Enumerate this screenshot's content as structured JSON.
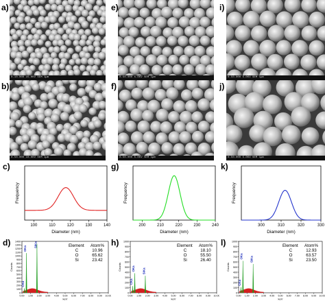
{
  "figure": {
    "panel_labels": [
      "a)",
      "b)",
      "c)",
      "d)",
      "e)",
      "f)",
      "g)",
      "h)",
      "i)",
      "j)",
      "k)",
      "l)"
    ],
    "sem_info": [
      "0.10.000   15.0KV  SEM   1µm",
      "0.50.000   10.0KV  SEM   1µm",
      "0.50.000   5.0KV  SEM   1µm",
      "0.50.000   5.0KV  SEM   1µm",
      "0.50.000   5.0KV  SEM   1µm",
      "0.50.000   5.0KV  SEM   1µm"
    ]
  },
  "chart_data": [
    {
      "type": "line",
      "panel": "c",
      "title": "",
      "xlabel": "Diameter (nm)",
      "ylabel": "Frequency",
      "xlim": [
        95,
        140
      ],
      "xticks": [
        100,
        110,
        120,
        130,
        140
      ],
      "series": [
        {
          "color": "#e02020",
          "peak_x": 117.5,
          "sigma": 4.2,
          "baseline": 0.18,
          "amplitude": 0.42
        }
      ],
      "grid": false
    },
    {
      "type": "line",
      "panel": "g",
      "title": "",
      "xlabel": "Diameter (nm)",
      "ylabel": "Frequency",
      "xlim": [
        195,
        240
      ],
      "xticks": [
        200,
        210,
        220,
        230,
        240
      ],
      "series": [
        {
          "color": "#22dd22",
          "peak_x": 217.5,
          "sigma": 3.2,
          "baseline": 0.0,
          "amplitude": 0.82
        }
      ],
      "grid": false
    },
    {
      "type": "line",
      "panel": "k",
      "title": "",
      "xlabel": "Diameter (nm)",
      "ylabel": "Frequency",
      "xlim": [
        290,
        330
      ],
      "xticks": [
        300,
        310,
        320,
        330
      ],
      "series": [
        {
          "color": "#2233cc",
          "peak_x": 312,
          "sigma": 3.2,
          "baseline": 0.0,
          "amplitude": 0.55
        }
      ],
      "grid": false
    },
    {
      "type": "bar",
      "panel": "d",
      "title": "",
      "xlabel": "keV",
      "ylabel": "Counts",
      "xlim": [
        0,
        10
      ],
      "xticks": [
        "0.00",
        "1.00",
        "2.00",
        "3.00",
        "4.00",
        "5.00",
        "6.00",
        "7.00",
        "8.00",
        "9.00",
        "10.00"
      ],
      "ylim": [
        0,
        1400
      ],
      "yticks": [
        0,
        100,
        200,
        300,
        400,
        500,
        600,
        700,
        800,
        900,
        1000,
        1100,
        1200,
        1300,
        1400
      ],
      "peaks": [
        {
          "x": 0.28,
          "value": 120,
          "label": "CKa"
        },
        {
          "x": 0.52,
          "value": 1080,
          "label": "OKa"
        },
        {
          "x": 1.74,
          "value": 1330,
          "label": "SiKa"
        }
      ],
      "table": {
        "headers": [
          "Element",
          "Atom%"
        ],
        "rows": [
          [
            "C",
            "10.96"
          ],
          [
            "O",
            "65.62"
          ],
          [
            "Si",
            "23.42"
          ]
        ]
      }
    },
    {
      "type": "bar",
      "panel": "h",
      "title": "",
      "xlabel": "keV",
      "ylabel": "Counts",
      "xlim": [
        0,
        10
      ],
      "xticks": [
        "0.00",
        "1.00",
        "2.00",
        "3.00",
        "4.00",
        "5.00",
        "6.00",
        "7.00",
        "8.00",
        "9.00",
        "10.00"
      ],
      "ylim": [
        0,
        1000
      ],
      "yticks": [
        0,
        100,
        200,
        300,
        400,
        500,
        600,
        700,
        800,
        900,
        1000
      ],
      "peaks": [
        {
          "x": 0.28,
          "value": 130,
          "label": "CKa"
        },
        {
          "x": 0.52,
          "value": 380,
          "label": "OKa"
        },
        {
          "x": 1.74,
          "value": 330,
          "label": "SiKa"
        }
      ],
      "table": {
        "headers": [
          "Element",
          "Atom%"
        ],
        "rows": [
          [
            "C",
            "18.10"
          ],
          [
            "O",
            "55.50"
          ],
          [
            "Si",
            "26.40"
          ]
        ]
      }
    },
    {
      "type": "bar",
      "panel": "l",
      "title": "",
      "xlabel": "keV",
      "ylabel": "Counts",
      "xlim": [
        0,
        10
      ],
      "xticks": [
        "0.00",
        "1.00",
        "2.00",
        "3.00",
        "4.00",
        "5.00",
        "6.00",
        "7.00",
        "8.00",
        "9.00",
        "10.00"
      ],
      "ylim": [
        0,
        1000
      ],
      "yticks": [
        0,
        100,
        200,
        300,
        400,
        500,
        600,
        700,
        800,
        900,
        1000
      ],
      "peaks": [
        {
          "x": 0.28,
          "value": 110,
          "label": "CKa"
        },
        {
          "x": 0.52,
          "value": 620,
          "label": "OKa"
        },
        {
          "x": 1.74,
          "value": 560,
          "label": "SiKa"
        }
      ],
      "table": {
        "headers": [
          "Element",
          "Atom%"
        ],
        "rows": [
          [
            "C",
            "12.93"
          ],
          [
            "O",
            "63.57"
          ],
          [
            "Si",
            "23.50"
          ]
        ]
      }
    }
  ]
}
